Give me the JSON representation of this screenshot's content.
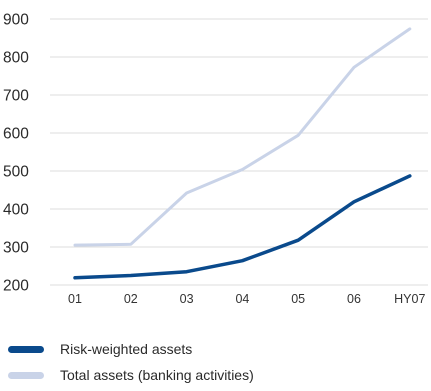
{
  "colors": {
    "risk_weighted": "#0a4a8c",
    "total_assets": "#c9d3e8",
    "grid": "#dcdcdc"
  },
  "chart_data": {
    "type": "line",
    "title": "",
    "xlabel": "",
    "ylabel": "",
    "categories": [
      "01",
      "02",
      "03",
      "04",
      "05",
      "06",
      "HY07"
    ],
    "ylim": [
      200,
      900
    ],
    "yticks": [
      200,
      300,
      400,
      500,
      600,
      700,
      800,
      900
    ],
    "grid": true,
    "legend_position": "bottom",
    "series": [
      {
        "name": "Risk-weighted assets",
        "values": [
          219,
          225,
          235,
          264,
          318,
          419,
          487
        ]
      },
      {
        "name": "Total assets (banking activities)",
        "values": [
          305,
          307,
          442,
          504,
          594,
          773,
          874
        ]
      }
    ]
  }
}
